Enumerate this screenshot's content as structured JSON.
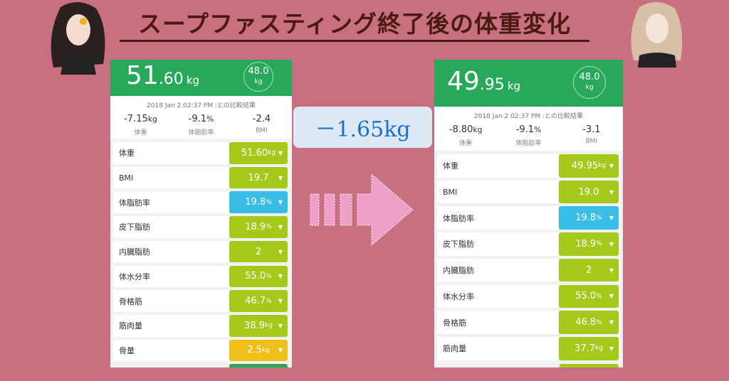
{
  "title": "スープファスティング終了後の体重変化",
  "difference": "－1.65kg",
  "colors": {
    "background": "#c8707f",
    "header": "#27a85a",
    "lime": "#a5c91a",
    "blue": "#37bde6",
    "yellow": "#f0c01a",
    "arrow": "#f0a0c8"
  },
  "before": {
    "weight_int": "51",
    "weight_dec": ".60",
    "unit": "kg",
    "target": "48.0",
    "target_unit": "kg",
    "compare_date": "2018 Jan 2 02:37 PM :との比較結果",
    "stats": [
      {
        "value": "-7.15",
        "unit": "kg",
        "label": "体重"
      },
      {
        "value": "-9.1",
        "unit": "%",
        "label": "体脂肪率"
      },
      {
        "value": "-2.4",
        "unit": "",
        "label": "BMI"
      }
    ],
    "rows": [
      {
        "label": "体重",
        "value": "51.60",
        "unit": "kg",
        "color": "#a5c91a"
      },
      {
        "label": "BMI",
        "value": "19.7",
        "unit": "",
        "color": "#a5c91a"
      },
      {
        "label": "体脂肪率",
        "value": "19.8",
        "unit": "%",
        "color": "#37bde6"
      },
      {
        "label": "皮下脂肪",
        "value": "18.9",
        "unit": "%",
        "color": "#a5c91a"
      },
      {
        "label": "内臓脂肪",
        "value": "2",
        "unit": "",
        "color": "#a5c91a"
      },
      {
        "label": "体水分率",
        "value": "55.0",
        "unit": "%",
        "color": "#a5c91a"
      },
      {
        "label": "骨格筋",
        "value": "46.7",
        "unit": "%",
        "color": "#a5c91a"
      },
      {
        "label": "筋肉量",
        "value": "38.9",
        "unit": "kg",
        "color": "#a5c91a"
      },
      {
        "label": "骨量",
        "value": "2.5",
        "unit": "kg",
        "color": "#f0c01a"
      }
    ]
  },
  "after": {
    "weight_int": "49",
    "weight_dec": ".95",
    "unit": "kg",
    "target": "48.0",
    "target_unit": "kg",
    "compare_date": "2018 Jan 2 02:37 PM :との比較結果",
    "stats": [
      {
        "value": "-8.80",
        "unit": "kg",
        "label": "体重"
      },
      {
        "value": "-9.1",
        "unit": "%",
        "label": "体脂肪率"
      },
      {
        "value": "-3.1",
        "unit": "",
        "label": "BMI"
      }
    ],
    "rows": [
      {
        "label": "体重",
        "value": "49.95",
        "unit": "kg",
        "color": "#a5c91a"
      },
      {
        "label": "BMI",
        "value": "19.0",
        "unit": "",
        "color": "#a5c91a"
      },
      {
        "label": "体脂肪率",
        "value": "19.8",
        "unit": "%",
        "color": "#37bde6"
      },
      {
        "label": "皮下脂肪",
        "value": "18.9",
        "unit": "%",
        "color": "#a5c91a"
      },
      {
        "label": "内臓脂肪",
        "value": "2",
        "unit": "",
        "color": "#a5c91a"
      },
      {
        "label": "体水分率",
        "value": "55.0",
        "unit": "%",
        "color": "#a5c91a"
      },
      {
        "label": "骨格筋",
        "value": "46.8",
        "unit": "%",
        "color": "#a5c91a"
      },
      {
        "label": "筋肉量",
        "value": "37.7",
        "unit": "kg",
        "color": "#a5c91a"
      }
    ]
  }
}
